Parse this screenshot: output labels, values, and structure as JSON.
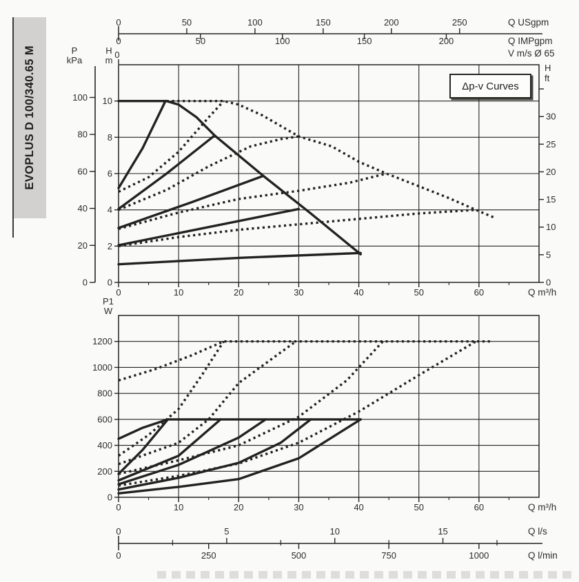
{
  "sidebar": {
    "model_label": "EVOPLUS D 100/340.65 M",
    "bg": "#d2d1cf",
    "text_color": "#1d1d1b"
  },
  "annotation_box": {
    "label": "Δp-v Curves"
  },
  "colors": {
    "ink": "#22221f",
    "grid": "#23231f",
    "sidebar_gray": "#d2d1cf"
  },
  "top_scales": {
    "usgpm": {
      "unit": "Q USgpm",
      "ticks": [
        0,
        50,
        100,
        150,
        200,
        250
      ],
      "to_m3h": 0.2271
    },
    "impgpm": {
      "unit": "Q IMPgpm",
      "ticks": [
        0,
        50,
        100,
        150,
        200
      ],
      "to_m3h": 0.2728
    },
    "velocity": {
      "unit": "V m/s Ø 65",
      "zero_label": "0"
    }
  },
  "bottom_scales": {
    "ls": {
      "unit": "Q l/s",
      "ticks": [
        0,
        5,
        10,
        15
      ],
      "minor": [
        2.5,
        7.5,
        12.5,
        17.5
      ],
      "to_m3h": 3.6
    },
    "lmin": {
      "unit": "Q l/min",
      "ticks": [
        0,
        250,
        500,
        750,
        1000
      ],
      "to_m3h": 0.06
    }
  },
  "chart_data": [
    {
      "name": "head-flow-chart",
      "type": "line",
      "title": "Δp-v Curves",
      "x": {
        "label": "Q m³/h",
        "range": [
          0,
          70
        ],
        "ticks": [
          0,
          10,
          20,
          30,
          40,
          50,
          60
        ],
        "minor_step": 5,
        "grid": [
          10,
          20,
          30,
          40,
          50,
          60
        ]
      },
      "y": {
        "label_lines": [
          "H",
          "m"
        ],
        "range": [
          0,
          12
        ],
        "ticks": [
          0,
          2,
          4,
          6,
          8,
          10
        ],
        "grid": [
          2,
          4,
          6,
          8,
          10
        ]
      },
      "y_kpa": {
        "label_lines": [
          "P",
          "kPa"
        ],
        "ticks": [
          0,
          20,
          40,
          60,
          80,
          100
        ],
        "m_per_unit": 0.10197
      },
      "y_ft": {
        "label_lines": [
          "H",
          "ft"
        ],
        "ticks": [
          0,
          5,
          10,
          15,
          20,
          25,
          30
        ],
        "unlabeled_ticks": [
          35
        ],
        "m_per_unit": 0.3048
      },
      "series": [
        {
          "name": "max-curve-single",
          "style": "solid",
          "points": [
            [
              0,
              10
            ],
            [
              8,
              10
            ],
            [
              10,
              9.8
            ],
            [
              13,
              9.1
            ],
            [
              16,
              8.1
            ],
            [
              24,
              5.9
            ],
            [
              32,
              3.8
            ],
            [
              40.3,
              1.55
            ]
          ]
        },
        {
          "name": "dpv-10m-single",
          "style": "solid",
          "points": [
            [
              0,
              5.2
            ],
            [
              4,
              7.4
            ],
            [
              7.8,
              10
            ]
          ]
        },
        {
          "name": "dpv-8m-single",
          "style": "solid",
          "points": [
            [
              0,
              4.05
            ],
            [
              8,
              6.0
            ],
            [
              16,
              8.1
            ]
          ]
        },
        {
          "name": "dpv-6m-single",
          "style": "solid",
          "points": [
            [
              0,
              3.0
            ],
            [
              12,
              4.4
            ],
            [
              23.9,
              5.85
            ]
          ]
        },
        {
          "name": "dpv-4m-single",
          "style": "solid",
          "points": [
            [
              0,
              2.05
            ],
            [
              15,
              3.05
            ],
            [
              30,
              4.05
            ]
          ]
        },
        {
          "name": "min-curve-single",
          "style": "solid",
          "points": [
            [
              0,
              1.0
            ],
            [
              20,
              1.35
            ],
            [
              40.3,
              1.62
            ]
          ]
        },
        {
          "name": "max-curve-parallel",
          "style": "dotted",
          "points": [
            [
              8,
              10
            ],
            [
              17.5,
              10
            ],
            [
              20,
              9.8
            ],
            [
              24,
              9.2
            ],
            [
              30,
              8.05
            ],
            [
              35.5,
              7.5
            ],
            [
              40,
              6.65
            ],
            [
              44.6,
              6.0
            ],
            [
              50,
              5.3
            ],
            [
              55,
              4.65
            ],
            [
              59.5,
              4.0
            ],
            [
              62.7,
              3.55
            ]
          ]
        },
        {
          "name": "dpv-10m-parallel",
          "style": "dotted",
          "points": [
            [
              0,
              5.0
            ],
            [
              5,
              5.8
            ],
            [
              10,
              7.2
            ],
            [
              15,
              9.1
            ],
            [
              17.5,
              10
            ]
          ]
        },
        {
          "name": "dpv-8m-parallel",
          "style": "dotted",
          "points": [
            [
              0,
              4.0
            ],
            [
              8,
              5.1
            ],
            [
              15,
              6.4
            ],
            [
              22,
              7.5
            ],
            [
              27,
              7.9
            ],
            [
              30,
              8.05
            ]
          ]
        },
        {
          "name": "dpv-6m-parallel",
          "style": "dotted",
          "points": [
            [
              0,
              2.95
            ],
            [
              10,
              3.85
            ],
            [
              20,
              4.6
            ],
            [
              30,
              5.05
            ],
            [
              38.5,
              5.5
            ],
            [
              44.6,
              6.0
            ]
          ]
        },
        {
          "name": "dpv-4m-parallel",
          "style": "dotted",
          "points": [
            [
              0,
              2.0
            ],
            [
              10,
              2.5
            ],
            [
              20,
              2.9
            ],
            [
              30,
              3.2
            ],
            [
              40,
              3.5
            ],
            [
              50,
              3.8
            ],
            [
              59.5,
              4.0
            ]
          ]
        }
      ]
    },
    {
      "name": "power-flow-chart",
      "type": "line",
      "x": {
        "label": "Q m³/h",
        "range": [
          0,
          70
        ],
        "ticks": [
          0,
          10,
          20,
          30,
          40,
          50,
          60
        ],
        "minor_step": 5,
        "grid": [
          10,
          20,
          30,
          40,
          50,
          60
        ]
      },
      "y": {
        "label_lines": [
          "P1",
          "W"
        ],
        "range": [
          0,
          1400
        ],
        "ticks": [
          0,
          200,
          400,
          600,
          800,
          1000,
          1200
        ],
        "grid": [
          200,
          400,
          600,
          800,
          1000,
          1200
        ]
      },
      "series": [
        {
          "name": "power-max-single",
          "style": "solid",
          "points": [
            [
              0,
              450
            ],
            [
              4,
              535
            ],
            [
              8.2,
              600
            ],
            [
              40.3,
              600
            ]
          ]
        },
        {
          "name": "power-dpv-10m-single",
          "style": "solid",
          "points": [
            [
              0,
              180
            ],
            [
              4,
              365
            ],
            [
              8.2,
              600
            ]
          ]
        },
        {
          "name": "power-dpv-8m-single",
          "style": "solid",
          "points": [
            [
              0,
              130
            ],
            [
              10,
              320
            ],
            [
              17,
              600
            ]
          ]
        },
        {
          "name": "power-dpv-6m-single",
          "style": "solid",
          "points": [
            [
              0,
              100
            ],
            [
              10,
              250
            ],
            [
              20,
              460
            ],
            [
              24.5,
              600
            ]
          ]
        },
        {
          "name": "power-dpv-4m-single",
          "style": "solid",
          "points": [
            [
              0,
              60
            ],
            [
              10,
              150
            ],
            [
              20,
              265
            ],
            [
              27,
              420
            ],
            [
              32,
              600
            ]
          ]
        },
        {
          "name": "power-min-single",
          "style": "solid",
          "points": [
            [
              0,
              30
            ],
            [
              10,
              80
            ],
            [
              20,
              140
            ],
            [
              30,
              300
            ],
            [
              40.3,
              600
            ]
          ]
        },
        {
          "name": "power-max-parallel",
          "style": "dotted",
          "points": [
            [
              0,
              900
            ],
            [
              6,
              985
            ],
            [
              12,
              1090
            ],
            [
              17.5,
              1200
            ],
            [
              62,
              1200
            ]
          ]
        },
        {
          "name": "power-dpv-10m-parallel",
          "style": "dotted",
          "points": [
            [
              0,
              320
            ],
            [
              5,
              480
            ],
            [
              10,
              680
            ],
            [
              14,
              950
            ],
            [
              17.5,
              1200
            ]
          ]
        },
        {
          "name": "power-dpv-8m-parallel",
          "style": "dotted",
          "points": [
            [
              0,
              255
            ],
            [
              10,
              420
            ],
            [
              15,
              600
            ],
            [
              20,
              880
            ],
            [
              29.5,
              1200
            ]
          ]
        },
        {
          "name": "power-dpv-6m-parallel",
          "style": "dotted",
          "points": [
            [
              0,
              180
            ],
            [
              10,
              285
            ],
            [
              20,
              400
            ],
            [
              30,
              620
            ],
            [
              38,
              900
            ],
            [
              44,
              1200
            ]
          ]
        },
        {
          "name": "power-dpv-4m-parallel",
          "style": "dotted",
          "points": [
            [
              0,
              90
            ],
            [
              10,
              165
            ],
            [
              20,
              260
            ],
            [
              30,
              420
            ],
            [
              40,
              660
            ],
            [
              50,
              940
            ],
            [
              59.5,
              1200
            ]
          ]
        }
      ]
    }
  ]
}
